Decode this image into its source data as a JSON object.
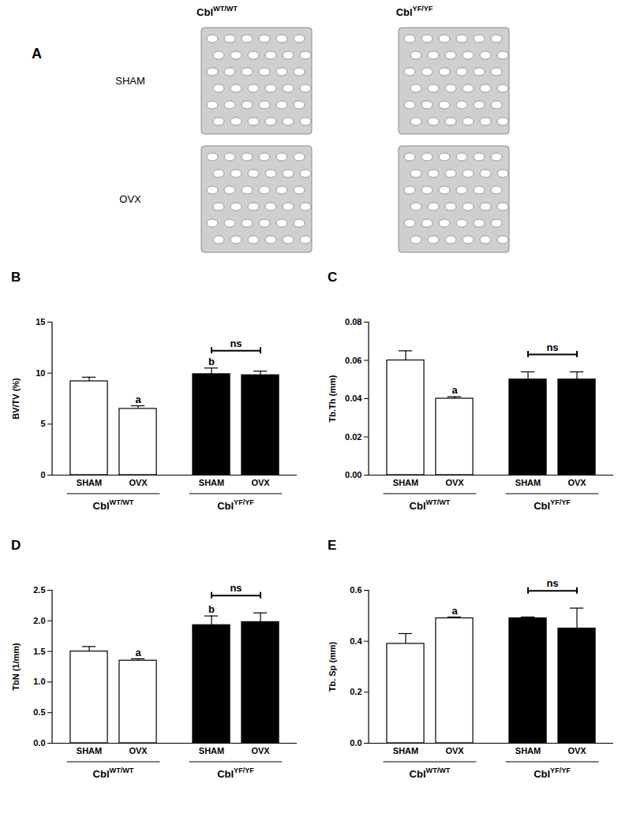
{
  "panel_a": {
    "label": "A",
    "columns": [
      {
        "label": "Cbl",
        "superscript": "WT/WT"
      },
      {
        "label": "Cbl",
        "superscript": "YF/YF"
      }
    ],
    "rows": [
      "SHAM",
      "OVX"
    ]
  },
  "chart_data": [
    {
      "type": "bar",
      "title": "B",
      "ylabel": "BV/TV (%)",
      "categories": [
        "SHAM",
        "OVX",
        "SHAM",
        "OVX"
      ],
      "groups": [
        {
          "label": "Cbl",
          "superscript": "WT/WT",
          "size": 2
        },
        {
          "label": "Cbl",
          "superscript": "YF/YF",
          "size": 2
        }
      ],
      "values": [
        9.2,
        6.5,
        9.9,
        9.8
      ],
      "errors": [
        0.4,
        0.3,
        0.6,
        0.4
      ],
      "colors": [
        "#ffffff",
        "#ffffff",
        "#000000",
        "#000000"
      ],
      "significance": [
        null,
        "a",
        "b",
        null
      ],
      "brackets": [
        {
          "from": 2,
          "to": 3,
          "text": "ns"
        }
      ],
      "ylim": [
        0,
        15
      ],
      "yticks": [
        0,
        5,
        10,
        15
      ]
    },
    {
      "type": "bar",
      "title": "C",
      "ylabel": "Tb.Th (mm)",
      "categories": [
        "SHAM",
        "OVX",
        "SHAM",
        "OVX"
      ],
      "groups": [
        {
          "label": "Cbl",
          "superscript": "WT/WT",
          "size": 2
        },
        {
          "label": "Cbl",
          "superscript": "YF/YF",
          "size": 2
        }
      ],
      "values": [
        0.06,
        0.04,
        0.05,
        0.05
      ],
      "errors": [
        0.005,
        0.001,
        0.004,
        0.004
      ],
      "colors": [
        "#ffffff",
        "#ffffff",
        "#000000",
        "#000000"
      ],
      "significance": [
        null,
        "a",
        null,
        null
      ],
      "brackets": [
        {
          "from": 2,
          "to": 3,
          "text": "ns"
        }
      ],
      "ylim": [
        0,
        0.08
      ],
      "yticks": [
        {
          "value": 0,
          "label": "0.00"
        },
        {
          "value": 0.02,
          "label": "0.02"
        },
        {
          "value": 0.04,
          "label": "0.04"
        },
        {
          "value": 0.06,
          "label": "0.06"
        },
        {
          "value": 0.08,
          "label": "0.08"
        }
      ]
    },
    {
      "type": "bar",
      "title": "D",
      "ylabel": "TbN (1/mm)",
      "categories": [
        "SHAM",
        "OVX",
        "SHAM",
        "OVX"
      ],
      "groups": [
        {
          "label": "Cbl",
          "superscript": "WT/WT",
          "size": 2
        },
        {
          "label": "Cbl",
          "superscript": "YF/YF",
          "size": 2
        }
      ],
      "values": [
        1.5,
        1.35,
        1.93,
        1.98
      ],
      "errors": [
        0.08,
        0.03,
        0.15,
        0.15
      ],
      "colors": [
        "#ffffff",
        "#ffffff",
        "#000000",
        "#000000"
      ],
      "significance": [
        null,
        "a",
        "b",
        null
      ],
      "brackets": [
        {
          "from": 2,
          "to": 3,
          "text": "ns"
        }
      ],
      "ylim": [
        0,
        2.5
      ],
      "yticks": [
        {
          "value": 0,
          "label": "0.0"
        },
        {
          "value": 0.5,
          "label": "0.5"
        },
        {
          "value": 1,
          "label": "1.0"
        },
        {
          "value": 1.5,
          "label": "1.5"
        },
        {
          "value": 2,
          "label": "2.0"
        },
        {
          "value": 2.5,
          "label": "2.5"
        }
      ]
    },
    {
      "type": "bar",
      "title": "E",
      "ylabel": "Tb. Sp (mm)",
      "categories": [
        "SHAM",
        "OVX",
        "SHAM",
        "OVX"
      ],
      "groups": [
        {
          "label": "Cbl",
          "superscript": "WT/WT",
          "size": 2
        },
        {
          "label": "Cbl",
          "superscript": "YF/YF",
          "size": 2
        }
      ],
      "values": [
        0.39,
        0.49,
        0.49,
        0.45
      ],
      "errors": [
        0.04,
        0.005,
        0.005,
        0.08
      ],
      "colors": [
        "#ffffff",
        "#ffffff",
        "#000000",
        "#000000"
      ],
      "significance": [
        null,
        "a",
        null,
        null
      ],
      "brackets": [
        {
          "from": 2,
          "to": 3,
          "text": "ns"
        }
      ],
      "ylim": [
        0,
        0.6
      ],
      "yticks": [
        {
          "value": 0,
          "label": "0.0"
        },
        {
          "value": 0.2,
          "label": "0.2"
        },
        {
          "value": 0.4,
          "label": "0.4"
        },
        {
          "value": 0.6,
          "label": "0.6"
        }
      ]
    }
  ]
}
